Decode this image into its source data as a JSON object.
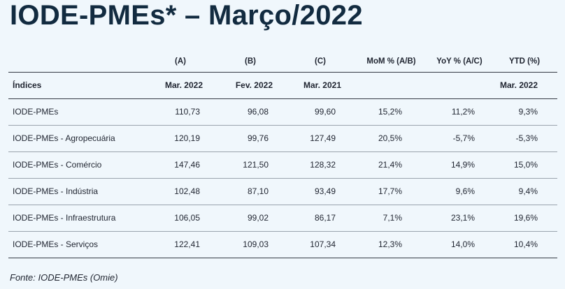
{
  "title": "IODE-PMEs* – Março/2022",
  "table": {
    "letters": [
      "",
      "(A)",
      "(B)",
      "(C)",
      "MoM % (A/B)",
      "YoY % (A/C)",
      "YTD (%)"
    ],
    "headers": [
      "Índices",
      "Mar. 2022",
      "Fev. 2022",
      "Mar. 2021",
      "",
      "",
      "Mar. 2022"
    ],
    "rows": [
      [
        "IODE-PMEs",
        "110,73",
        "96,08",
        "99,60",
        "15,2%",
        "11,2%",
        "9,3%"
      ],
      [
        "IODE-PMEs - Agropecuária",
        "120,19",
        "99,76",
        "127,49",
        "20,5%",
        "-5,7%",
        "-5,3%"
      ],
      [
        "IODE-PMEs - Comércio",
        "147,46",
        "121,50",
        "128,32",
        "21,4%",
        "14,9%",
        "15,0%"
      ],
      [
        "IODE-PMEs - Indústria",
        "102,48",
        "87,10",
        "93,49",
        "17,7%",
        "9,6%",
        "9,4%"
      ],
      [
        "IODE-PMEs - Infraestrutura",
        "106,05",
        "99,02",
        "86,17",
        "7,1%",
        "23,1%",
        "19,6%"
      ],
      [
        "IODE-PMEs - Serviços",
        "122,41",
        "109,03",
        "107,34",
        "12,3%",
        "14,0%",
        "10,4%"
      ]
    ]
  },
  "source": "Fonte: IODE-PMEs (Omie)"
}
